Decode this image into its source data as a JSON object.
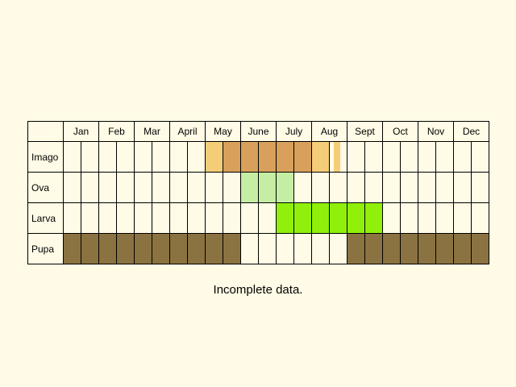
{
  "months": [
    "Jan",
    "Feb",
    "Mar",
    "April",
    "May",
    "June",
    "July",
    "Aug",
    "Sept",
    "Oct",
    "Nov",
    "Dec"
  ],
  "colors": {
    "background": "#fffbe6",
    "empty": "#fffbe6",
    "imago_light": "#f5cd78",
    "imago_dark": "#d9a05b",
    "ova": "#c6eda4",
    "larva": "#90f00b",
    "pupa": "#8b7341"
  },
  "rows": [
    {
      "label": "Imago",
      "cells": [
        "",
        "",
        "",
        "",
        "",
        "",
        "",
        "",
        "imago_light",
        "imago_dark",
        "imago_dark",
        "imago_dark",
        "imago_dark",
        "imago_dark",
        "imago_light",
        "imago_light_partial",
        "",
        "",
        "",
        "",
        "",
        "",
        "",
        ""
      ]
    },
    {
      "label": "Ova",
      "cells": [
        "",
        "",
        "",
        "",
        "",
        "",
        "",
        "",
        "",
        "",
        "ova",
        "ova",
        "ova",
        "",
        "",
        "",
        "",
        "",
        "",
        "",
        "",
        "",
        "",
        ""
      ]
    },
    {
      "label": "Larva",
      "cells": [
        "",
        "",
        "",
        "",
        "",
        "",
        "",
        "",
        "",
        "",
        "",
        "",
        "larva",
        "larva",
        "larva",
        "larva",
        "larva",
        "larva",
        "",
        "",
        "",
        "",
        "",
        ""
      ]
    },
    {
      "label": "Pupa",
      "cells": [
        "pupa",
        "pupa",
        "pupa",
        "pupa",
        "pupa",
        "pupa",
        "pupa",
        "pupa",
        "pupa",
        "pupa",
        "",
        "",
        "",
        "",
        "",
        "",
        "pupa",
        "pupa",
        "pupa",
        "pupa",
        "pupa",
        "pupa",
        "pupa",
        "pupa"
      ]
    }
  ],
  "note": "Incomplete data."
}
